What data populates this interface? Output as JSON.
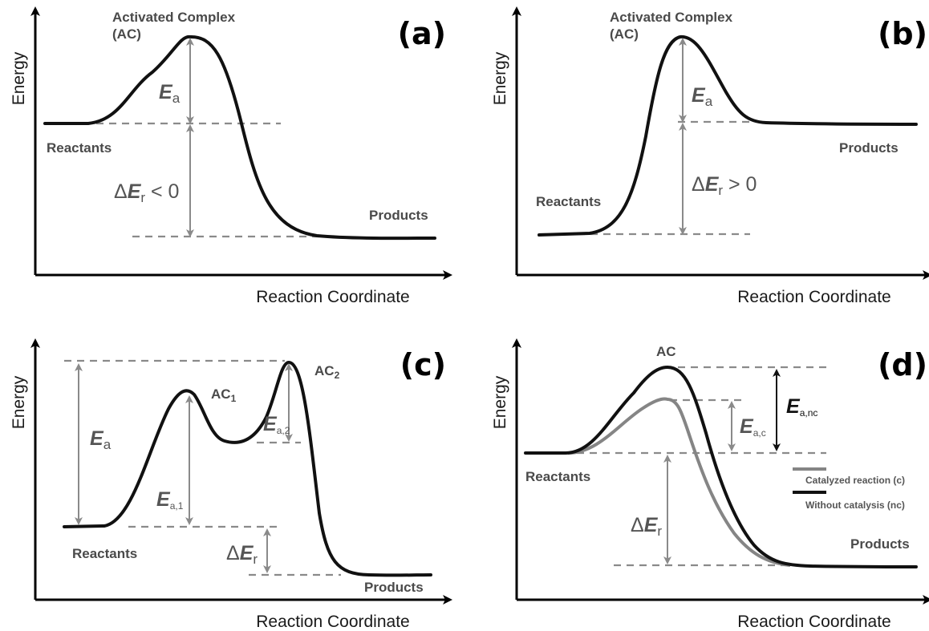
{
  "panels": {
    "a": {
      "letter": "(a)",
      "ac_line1": "Activated Complex",
      "ac_line2": "(AC)",
      "ea_sym": "E",
      "ea_sub": "a",
      "de_prefix": "Δ",
      "de_sym": "E",
      "de_sub": "r",
      "de_rel": " < 0",
      "reactants": "Reactants",
      "products": "Products",
      "y_label": "Energy",
      "x_label": "Reaction Coordinate"
    },
    "b": {
      "letter": "(b)",
      "ac_line1": "Activated Complex",
      "ac_line2": "(AC)",
      "ea_sym": "E",
      "ea_sub": "a",
      "de_prefix": "Δ",
      "de_sym": "E",
      "de_sub": "r",
      "de_rel": " > 0",
      "reactants": "Reactants",
      "products": "Products",
      "y_label": "Energy",
      "x_label": "Reaction Coordinate"
    },
    "c": {
      "letter": "(c)",
      "ac1": "AC",
      "ac1_sub": "1",
      "ac2": "AC",
      "ac2_sub": "2",
      "ea_sym": "E",
      "ea_sub": "a",
      "ea1_sym": "E",
      "ea1_sub": "a,1",
      "ea2_sym": "E",
      "ea2_sub": "a,2",
      "de_prefix": "Δ",
      "de_sym": "E",
      "de_sub": "r",
      "reactants": "Reactants",
      "products": "Products",
      "y_label": "Energy",
      "x_label": "Reaction Coordinate"
    },
    "d": {
      "letter": "(d)",
      "ac": "AC",
      "eanc_sym": "E",
      "eanc_sub": "a,nc",
      "eac_sym": "E",
      "eac_sub": "a,c",
      "de_prefix": "Δ",
      "de_sym": "E",
      "de_sub": "r",
      "reactants": "Reactants",
      "products": "Products",
      "legend_catalyzed": "Catalyzed reaction (c)",
      "legend_uncatalyzed": "Without catalysis (nc)",
      "y_label": "Energy",
      "x_label": "Reaction Coordinate"
    }
  },
  "colors": {
    "curve": "#111111",
    "catalyzed_curve": "#858585",
    "guides": "#8a8a8a"
  }
}
